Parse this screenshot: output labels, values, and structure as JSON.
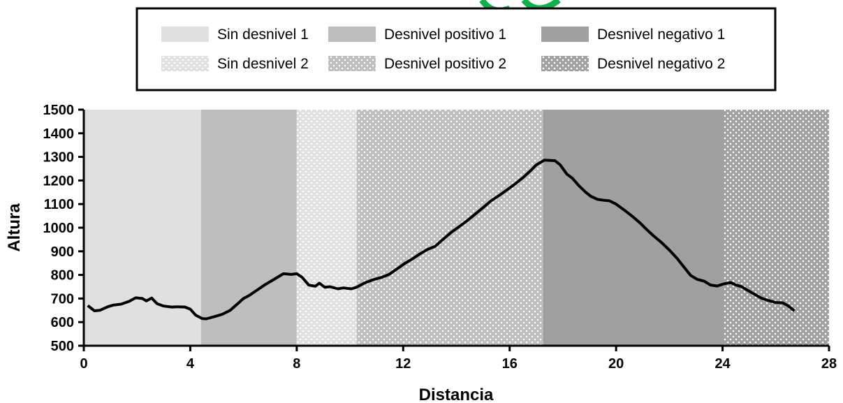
{
  "chart_data": {
    "type": "line",
    "title": "",
    "xlabel": "Distancia",
    "ylabel": "Altura",
    "xlim": [
      0,
      28
    ],
    "ylim": [
      500,
      1500
    ],
    "xticks": [
      0,
      4,
      8,
      12,
      16,
      20,
      24,
      28
    ],
    "yticks": [
      500,
      600,
      700,
      800,
      900,
      1000,
      1100,
      1200,
      1300,
      1400,
      1500
    ],
    "grid": false,
    "legend_position": "top",
    "legend": [
      {
        "label": "Sin desnivel 1",
        "fill": "#e0e0e0",
        "pattern": "solid"
      },
      {
        "label": "Desnivel positivo 1",
        "fill": "#bebebe",
        "pattern": "solid"
      },
      {
        "label": "Desnivel negativo 1",
        "fill": "#a0a0a0",
        "pattern": "solid"
      },
      {
        "label": "Sin desnivel 2",
        "fill": "#e0e0e0",
        "pattern": "dotted"
      },
      {
        "label": "Desnivel positivo 2",
        "fill": "#bebebe",
        "pattern": "dotted"
      },
      {
        "label": "Desnivel negativo 2",
        "fill": "#a0a0a0",
        "pattern": "dotted"
      }
    ],
    "regions": [
      {
        "label": "Sin desnivel 1",
        "x_start": 0,
        "x_end": 4.4,
        "fill": "#e0e0e0",
        "pattern": "solid"
      },
      {
        "label": "Desnivel positivo 1",
        "x_start": 4.4,
        "x_end": 8.0,
        "fill": "#bebebe",
        "pattern": "solid"
      },
      {
        "label": "Sin desnivel 2",
        "x_start": 8.0,
        "x_end": 10.25,
        "fill": "#e0e0e0",
        "pattern": "dotted"
      },
      {
        "label": "Desnivel positivo 2",
        "x_start": 10.25,
        "x_end": 17.25,
        "fill": "#bebebe",
        "pattern": "dotted"
      },
      {
        "label": "Desnivel negativo 1",
        "x_start": 17.25,
        "x_end": 24.05,
        "fill": "#a0a0a0",
        "pattern": "solid"
      },
      {
        "label": "Desnivel negativo 2",
        "x_start": 24.05,
        "x_end": 28,
        "fill": "#a0a0a0",
        "pattern": "dotted"
      }
    ],
    "series": [
      {
        "color": "#000000",
        "x": [
          0.15,
          0.4,
          0.6,
          0.9,
          1.1,
          1.4,
          1.7,
          1.95,
          2.2,
          2.35,
          2.55,
          2.75,
          3.0,
          3.3,
          3.5,
          3.8,
          4.0,
          4.2,
          4.45,
          4.6,
          4.9,
          5.2,
          5.5,
          5.8,
          6.0,
          6.2,
          6.5,
          6.8,
          7.1,
          7.5,
          7.8,
          8.0,
          8.2,
          8.45,
          8.7,
          8.85,
          9.05,
          9.25,
          9.55,
          9.75,
          10.05,
          10.25,
          10.55,
          10.85,
          11.2,
          11.45,
          11.75,
          12.05,
          12.35,
          12.6,
          12.9,
          13.2,
          13.5,
          13.8,
          14.1,
          14.4,
          14.7,
          15.0,
          15.3,
          15.6,
          15.9,
          16.2,
          16.5,
          16.8,
          17.0,
          17.3,
          17.55,
          17.7,
          17.9,
          18.15,
          18.35,
          18.6,
          18.85,
          19.05,
          19.3,
          19.55,
          19.75,
          20.0,
          20.3,
          20.6,
          20.9,
          21.15,
          21.4,
          21.7,
          22.0,
          22.3,
          22.55,
          22.8,
          23.05,
          23.3,
          23.55,
          23.8,
          24.05,
          24.3,
          24.5,
          24.7,
          24.95,
          25.2,
          25.45,
          25.7,
          26.0,
          26.25,
          26.45,
          26.7
        ],
        "y": [
          670,
          648,
          650,
          665,
          672,
          676,
          688,
          703,
          700,
          690,
          702,
          678,
          668,
          664,
          665,
          664,
          655,
          630,
          615,
          614,
          623,
          633,
          650,
          680,
          700,
          712,
          735,
          758,
          778,
          805,
          802,
          805,
          790,
          757,
          752,
          765,
          748,
          750,
          741,
          745,
          741,
          748,
          766,
          779,
          790,
          801,
          824,
          848,
          868,
          887,
          907,
          921,
          951,
          980,
          1004,
          1029,
          1057,
          1085,
          1114,
          1136,
          1160,
          1185,
          1212,
          1243,
          1266,
          1286,
          1285,
          1284,
          1266,
          1227,
          1210,
          1178,
          1151,
          1133,
          1120,
          1116,
          1114,
          1100,
          1075,
          1049,
          1020,
          992,
          966,
          938,
          905,
          869,
          833,
          798,
          781,
          774,
          757,
          753,
          762,
          768,
          757,
          751,
          734,
          718,
          702,
          692,
          683,
          682,
          670,
          648
        ]
      }
    ]
  }
}
